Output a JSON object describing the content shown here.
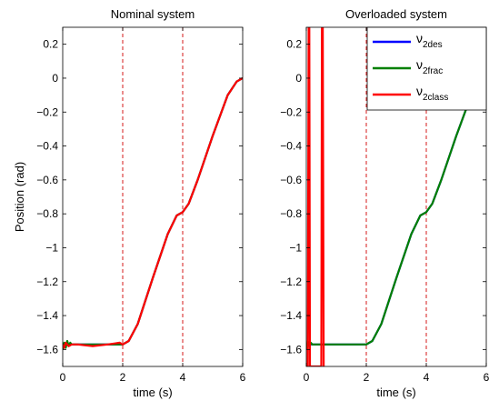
{
  "chart_data": [
    {
      "type": "line",
      "title": "Nominal system",
      "xlabel": "time (s)",
      "ylabel": "Position (rad)",
      "xlim": [
        0,
        6
      ],
      "ylim": [
        -1.7,
        0.3
      ],
      "xticks": [
        "0",
        "2",
        "4",
        "6"
      ],
      "yticks": [
        "0.2",
        "0",
        "−0.2",
        "−0.4",
        "−0.6",
        "−0.8",
        "−1",
        "−1.2",
        "−1.4",
        "−1.6"
      ],
      "vlines": [
        2,
        4
      ],
      "vline_color": "#d00000",
      "grid": false,
      "series": [
        {
          "color": "#0000ff",
          "x": [
            0,
            0.1,
            0.2,
            0.3,
            0.5,
            1,
            1.5,
            2,
            2.2,
            2.5,
            3,
            3.5,
            3.8,
            4,
            4.2,
            4.5,
            5,
            5.5,
            5.8,
            6
          ],
          "y": [
            -1.57,
            -1.57,
            -1.57,
            -1.57,
            -1.57,
            -1.57,
            -1.57,
            -1.57,
            -1.55,
            -1.45,
            -1.18,
            -0.92,
            -0.81,
            -0.79,
            -0.74,
            -0.6,
            -0.34,
            -0.1,
            -0.02,
            0
          ]
        },
        {
          "color": "#008000",
          "x": [
            0,
            0.05,
            0.1,
            0.15,
            0.2,
            0.25,
            0.3,
            0.5,
            1,
            1.5,
            2,
            2.2,
            2.5,
            3,
            3.5,
            3.8,
            4,
            4.2,
            4.5,
            5,
            5.5,
            5.8,
            6
          ],
          "y": [
            -1.6,
            -1.56,
            -1.59,
            -1.55,
            -1.58,
            -1.56,
            -1.57,
            -1.57,
            -1.57,
            -1.57,
            -1.57,
            -1.55,
            -1.45,
            -1.18,
            -0.92,
            -0.81,
            -0.79,
            -0.74,
            -0.6,
            -0.34,
            -0.1,
            -0.02,
            0
          ]
        },
        {
          "color": "#ff0000",
          "x": [
            0,
            0.05,
            0.1,
            0.2,
            0.3,
            0.5,
            1,
            1.5,
            1.9,
            2,
            2.2,
            2.5,
            3,
            3.5,
            3.8,
            4,
            4.2,
            4.5,
            5,
            5.5,
            5.8,
            6
          ],
          "y": [
            -1.57,
            -1.59,
            -1.56,
            -1.58,
            -1.57,
            -1.57,
            -1.58,
            -1.57,
            -1.56,
            -1.57,
            -1.55,
            -1.45,
            -1.18,
            -0.92,
            -0.81,
            -0.79,
            -0.74,
            -0.6,
            -0.34,
            -0.1,
            -0.02,
            0
          ]
        }
      ]
    },
    {
      "type": "line",
      "title": "Overloaded system",
      "xlabel": "time (s)",
      "xlim": [
        0,
        6
      ],
      "ylim": [
        -1.7,
        0.3
      ],
      "xticks": [
        "0",
        "2",
        "4",
        "6"
      ],
      "yticks": [
        "0.2",
        "0",
        "−0.2",
        "−0.4",
        "−0.6",
        "−0.8",
        "−1",
        "−1.2",
        "−1.4",
        "−1.6"
      ],
      "vlines": [
        2,
        4
      ],
      "vline_color": "#d00000",
      "grid": false,
      "legend_position": "top-right",
      "series": [
        {
          "name": "ν",
          "name_sub": "2des",
          "color": "#0000ff",
          "x": [
            0,
            0.1,
            0.2,
            0.3,
            0.5,
            1,
            1.5,
            2,
            2.2,
            2.5,
            3,
            3.5,
            3.8,
            4,
            4.2,
            4.5,
            5,
            5.5,
            5.8,
            6
          ],
          "y": [
            -1.57,
            -1.57,
            -1.57,
            -1.57,
            -1.57,
            -1.57,
            -1.57,
            -1.57,
            -1.55,
            -1.45,
            -1.18,
            -0.92,
            -0.81,
            -0.79,
            -0.74,
            -0.6,
            -0.34,
            -0.1,
            -0.02,
            0
          ]
        },
        {
          "name": "ν",
          "name_sub": "2frac",
          "color": "#008000",
          "x": [
            0,
            0.05,
            0.1,
            0.15,
            0.2,
            0.3,
            0.5,
            1,
            1.5,
            2,
            2.2,
            2.5,
            3,
            3.5,
            3.8,
            4,
            4.2,
            4.5,
            5,
            5.5,
            5.8,
            6
          ],
          "y": [
            -1.6,
            -1.55,
            -1.58,
            -1.56,
            -1.57,
            -1.57,
            -1.57,
            -1.57,
            -1.57,
            -1.57,
            -1.55,
            -1.45,
            -1.18,
            -0.92,
            -0.81,
            -0.79,
            -0.74,
            -0.6,
            -0.34,
            -0.1,
            -0.02,
            0
          ]
        },
        {
          "name": "ν",
          "name_sub": "2class",
          "color": "#ff0000",
          "x": [
            0.05,
            0.08,
            0.1,
            0.12,
            0.5,
            0.52,
            0.55,
            0.58
          ],
          "y": [
            -1.7,
            0.3,
            0.3,
            -1.7,
            -1.7,
            0.3,
            0.3,
            -1.7
          ]
        }
      ]
    }
  ]
}
